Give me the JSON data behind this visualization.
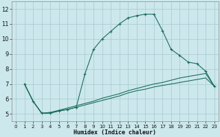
{
  "xlabel": "Humidex (Indice chaleur)",
  "ylabel": "",
  "background_color": "#cce8ec",
  "grid_color": "#aacdd4",
  "line_color": "#1a6b5a",
  "xlim": [
    -0.5,
    23.5
  ],
  "ylim": [
    4.5,
    12.5
  ],
  "xticks": [
    0,
    1,
    2,
    3,
    4,
    5,
    6,
    7,
    8,
    9,
    10,
    11,
    12,
    13,
    14,
    15,
    16,
    17,
    18,
    19,
    20,
    21,
    22,
    23
  ],
  "yticks": [
    5,
    6,
    7,
    8,
    9,
    10,
    11,
    12
  ],
  "line1_x": [
    1,
    2,
    3,
    4,
    5,
    6,
    7,
    8,
    9,
    10,
    11,
    12,
    13,
    14,
    15,
    16,
    17,
    18,
    19,
    20,
    21,
    22,
    23
  ],
  "line1_y": [
    7.0,
    5.85,
    5.05,
    5.05,
    5.2,
    5.3,
    5.45,
    7.65,
    9.3,
    10.0,
    10.5,
    11.0,
    11.4,
    11.55,
    11.65,
    11.65,
    10.55,
    9.3,
    8.9,
    8.45,
    8.35,
    7.85,
    6.85
  ],
  "line2_x": [
    1,
    2,
    3,
    4,
    5,
    6,
    7,
    8,
    9,
    10,
    11,
    12,
    13,
    14,
    15,
    16,
    17,
    18,
    19,
    20,
    21,
    22,
    23
  ],
  "line2_y": [
    7.0,
    5.85,
    5.05,
    5.1,
    5.25,
    5.4,
    5.55,
    5.7,
    5.85,
    6.05,
    6.2,
    6.35,
    6.55,
    6.7,
    6.85,
    7.0,
    7.1,
    7.25,
    7.4,
    7.5,
    7.6,
    7.7,
    6.85
  ],
  "line3_x": [
    1,
    2,
    3,
    4,
    5,
    6,
    7,
    8,
    9,
    10,
    11,
    12,
    13,
    14,
    15,
    16,
    17,
    18,
    19,
    20,
    21,
    22,
    23
  ],
  "line3_y": [
    7.0,
    5.85,
    5.05,
    5.1,
    5.2,
    5.3,
    5.45,
    5.6,
    5.75,
    5.9,
    6.05,
    6.2,
    6.4,
    6.55,
    6.65,
    6.8,
    6.9,
    7.0,
    7.1,
    7.2,
    7.3,
    7.4,
    6.85
  ]
}
